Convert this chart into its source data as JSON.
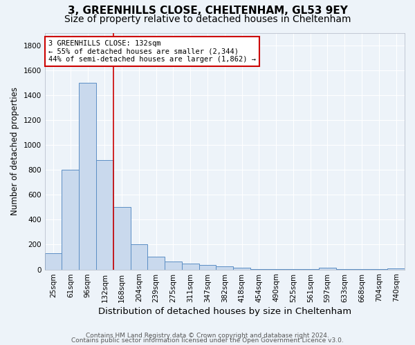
{
  "title1": "3, GREENHILLS CLOSE, CHELTENHAM, GL53 9EY",
  "title2": "Size of property relative to detached houses in Cheltenham",
  "xlabel": "Distribution of detached houses by size in Cheltenham",
  "ylabel": "Number of detached properties",
  "footer1": "Contains HM Land Registry data © Crown copyright and database right 2024.",
  "footer2": "Contains public sector information licensed under the Open Government Licence v3.0.",
  "categories": [
    "25sqm",
    "61sqm",
    "96sqm",
    "132sqm",
    "168sqm",
    "204sqm",
    "239sqm",
    "275sqm",
    "311sqm",
    "347sqm",
    "382sqm",
    "418sqm",
    "454sqm",
    "490sqm",
    "525sqm",
    "561sqm",
    "597sqm",
    "633sqm",
    "668sqm",
    "704sqm",
    "740sqm"
  ],
  "values": [
    130,
    800,
    1500,
    880,
    500,
    205,
    105,
    65,
    50,
    35,
    25,
    15,
    5,
    3,
    2,
    2,
    12,
    2,
    1,
    1,
    8
  ],
  "bar_color": "#c9d9ed",
  "bar_edge_color": "#5b8ec4",
  "red_line_index": 3,
  "annotation_line1": "3 GREENHILLS CLOSE: 132sqm",
  "annotation_line2": "← 55% of detached houses are smaller (2,344)",
  "annotation_line3": "44% of semi-detached houses are larger (1,862) →",
  "annotation_box_color": "#ffffff",
  "annotation_box_edge": "#cc0000",
  "ylim": [
    0,
    1900
  ],
  "yticks": [
    0,
    200,
    400,
    600,
    800,
    1000,
    1200,
    1400,
    1600,
    1800
  ],
  "background_color": "#edf3f9",
  "grid_color": "#ffffff",
  "title1_fontsize": 11,
  "title2_fontsize": 10,
  "xlabel_fontsize": 9.5,
  "ylabel_fontsize": 8.5,
  "footer_fontsize": 6.5,
  "tick_fontsize": 7.5,
  "annot_fontsize": 7.5
}
